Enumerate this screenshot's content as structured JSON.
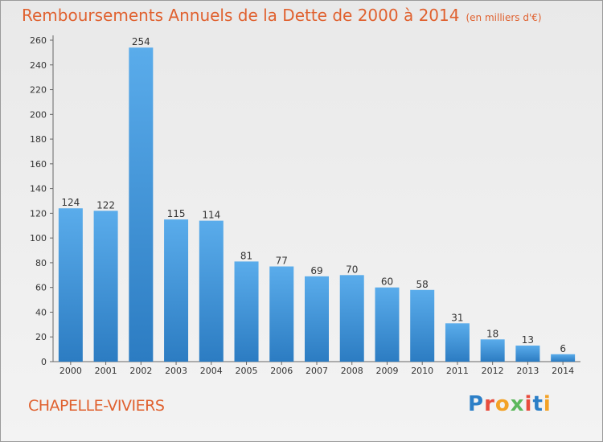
{
  "header": {
    "title": "Remboursements Annuels de la Dette de 2000 à 2014",
    "unit": "(en milliers d'€)"
  },
  "location": "CHAPELLE-VIVIERS",
  "logo": {
    "letters": [
      "P",
      "r",
      "o",
      "x",
      "i",
      "t",
      "i"
    ]
  },
  "chart_data": {
    "type": "bar",
    "title": "Remboursements Annuels de la Dette de 2000 à 2014",
    "subtitle": "(en milliers d'€)",
    "xlabel": "",
    "ylabel": "",
    "categories": [
      "2000",
      "2001",
      "2002",
      "2003",
      "2004",
      "2005",
      "2006",
      "2007",
      "2008",
      "2009",
      "2010",
      "2011",
      "2012",
      "2013",
      "2014"
    ],
    "values": [
      124,
      122,
      254,
      115,
      114,
      81,
      77,
      69,
      70,
      60,
      58,
      31,
      18,
      13,
      6
    ],
    "ylim": [
      0,
      260
    ],
    "yticks": [
      0,
      20,
      40,
      60,
      80,
      100,
      120,
      140,
      160,
      180,
      200,
      220,
      240,
      260
    ],
    "grid": false,
    "bar_color": "#3d8fd6"
  }
}
